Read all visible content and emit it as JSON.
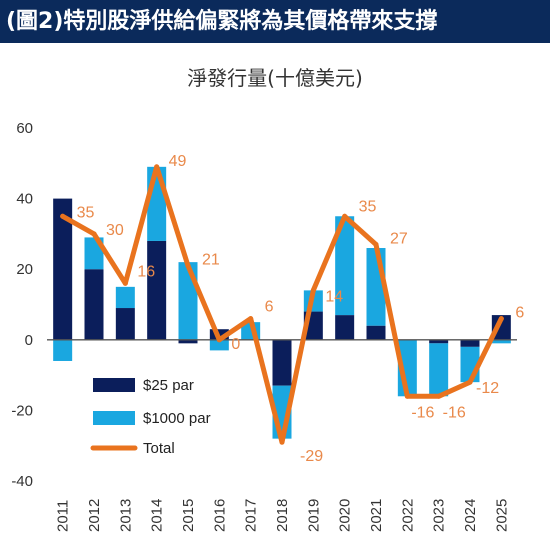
{
  "header": {
    "banner": "(圖2)特別股淨供給偏緊將為其價格帶來支撐",
    "subtitle": "淨發行量(十億美元)"
  },
  "colors": {
    "dark": "#0b1e5b",
    "light": "#1aa7e0",
    "total": "#e9731e",
    "label": "#e9894a"
  },
  "chart_data": {
    "type": "bar",
    "title": "淨發行量(十億美元)",
    "categories": [
      "2011",
      "2012",
      "2013",
      "2014",
      "2015",
      "2016",
      "2017",
      "2018",
      "2019",
      "2020",
      "2021",
      "2022",
      "2023",
      "2024",
      "2025"
    ],
    "ylim": [
      -40,
      60
    ],
    "yticks": [
      -40,
      -20,
      0,
      20,
      40,
      60
    ],
    "grid": false,
    "legend_position": "bottom-left",
    "series": [
      {
        "name": "$25 par",
        "type": "bar",
        "values": [
          40,
          20,
          9,
          28,
          -1,
          3,
          0,
          -13,
          8,
          7,
          4,
          0,
          -1,
          -2,
          7
        ]
      },
      {
        "name": "$1000 par",
        "type": "bar",
        "values": [
          -6,
          9,
          6,
          21,
          22,
          -3,
          5,
          -15,
          6,
          28,
          22,
          -16,
          -15,
          -10,
          -1
        ]
      },
      {
        "name": "Total",
        "type": "line",
        "values": [
          35,
          30,
          16,
          49,
          21,
          0,
          6,
          -29,
          14,
          35,
          27,
          -16,
          -16,
          -12,
          6
        ]
      }
    ],
    "data_labels": [
      {
        "index": 0,
        "text": "35"
      },
      {
        "index": 1,
        "text": "30"
      },
      {
        "index": 2,
        "text": "16"
      },
      {
        "index": 3,
        "text": "49"
      },
      {
        "index": 4,
        "text": "21"
      },
      {
        "index": 5,
        "text": "0"
      },
      {
        "index": 6,
        "text": "6"
      },
      {
        "index": 7,
        "text": "-29"
      },
      {
        "index": 8,
        "text": "14"
      },
      {
        "index": 9,
        "text": "35"
      },
      {
        "index": 10,
        "text": "27"
      },
      {
        "index": 11,
        "text": "-16"
      },
      {
        "index": 12,
        "text": "-16"
      },
      {
        "index": 13,
        "text": "-12"
      },
      {
        "index": 14,
        "text": "6"
      }
    ]
  }
}
